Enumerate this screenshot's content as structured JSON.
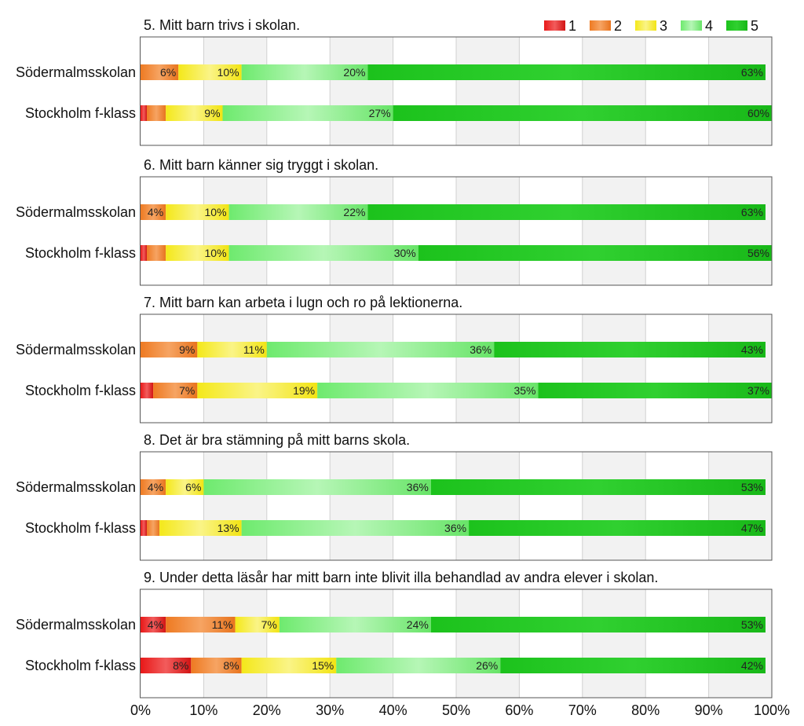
{
  "chart_data": {
    "type": "bar",
    "orientation": "horizontal",
    "stacked": true,
    "x_range_percent": [
      0,
      100
    ],
    "x_ticks": [
      "0%",
      "10%",
      "20%",
      "30%",
      "40%",
      "50%",
      "60%",
      "70%",
      "80%",
      "90%",
      "100%"
    ],
    "grid": true,
    "legend": {
      "placement": "top-right",
      "entries": [
        "1",
        "2",
        "3",
        "4",
        "5"
      ]
    },
    "colors": {
      "1": "#e01f1f",
      "2": "#f07e26",
      "3": "#f5ec26",
      "4": "#74ec74",
      "5": "#22c422",
      "band": "#f2f2f2",
      "grid": "#d0d0d0",
      "frame": "#555555"
    },
    "panels": [
      {
        "title": "5. Mitt barn trivs i skolan.",
        "rows": [
          {
            "category": "Södermalmsskolan",
            "values": [
              0,
              6,
              10,
              20,
              63
            ],
            "labels": [
              "",
              "6%",
              "10%",
              "20%",
              "63%"
            ]
          },
          {
            "category": "Stockholm f-klass",
            "values": [
              1,
              3,
              9,
              27,
              60
            ],
            "labels": [
              "",
              "",
              "9%",
              "27%",
              "60%"
            ]
          }
        ]
      },
      {
        "title": "6. Mitt barn känner sig tryggt i skolan.",
        "rows": [
          {
            "category": "Södermalmsskolan",
            "values": [
              0,
              4,
              10,
              22,
              63
            ],
            "labels": [
              "",
              "4%",
              "10%",
              "22%",
              "63%"
            ]
          },
          {
            "category": "Stockholm f-klass",
            "values": [
              1,
              3,
              10,
              30,
              56
            ],
            "labels": [
              "",
              "",
              "10%",
              "30%",
              "56%"
            ]
          }
        ]
      },
      {
        "title": "7. Mitt barn kan arbeta i lugn och ro på lektionerna.",
        "rows": [
          {
            "category": "Södermalmsskolan",
            "values": [
              0,
              9,
              11,
              36,
              43
            ],
            "labels": [
              "",
              "9%",
              "11%",
              "36%",
              "43%"
            ]
          },
          {
            "category": "Stockholm f-klass",
            "values": [
              2,
              7,
              19,
              35,
              37
            ],
            "labels": [
              "",
              "7%",
              "19%",
              "35%",
              "37%"
            ]
          }
        ]
      },
      {
        "title": "8. Det är bra stämning på mitt barns skola.",
        "rows": [
          {
            "category": "Södermalmsskolan",
            "values": [
              0,
              4,
              6,
              36,
              53
            ],
            "labels": [
              "",
              "4%",
              "6%",
              "36%",
              "53%"
            ]
          },
          {
            "category": "Stockholm f-klass",
            "values": [
              1,
              2,
              13,
              36,
              47
            ],
            "labels": [
              "",
              "",
              "13%",
              "36%",
              "47%"
            ]
          }
        ]
      },
      {
        "title": "9. Under detta läsår har mitt barn inte blivit illa behandlad av andra elever i skolan.",
        "rows": [
          {
            "category": "Södermalmsskolan",
            "values": [
              4,
              11,
              7,
              24,
              53
            ],
            "labels": [
              "4%",
              "11%",
              "7%",
              "24%",
              "53%"
            ]
          },
          {
            "category": "Stockholm f-klass",
            "values": [
              8,
              8,
              15,
              26,
              42
            ],
            "labels": [
              "8%",
              "8%",
              "15%",
              "26%",
              "42%"
            ]
          }
        ]
      }
    ]
  }
}
